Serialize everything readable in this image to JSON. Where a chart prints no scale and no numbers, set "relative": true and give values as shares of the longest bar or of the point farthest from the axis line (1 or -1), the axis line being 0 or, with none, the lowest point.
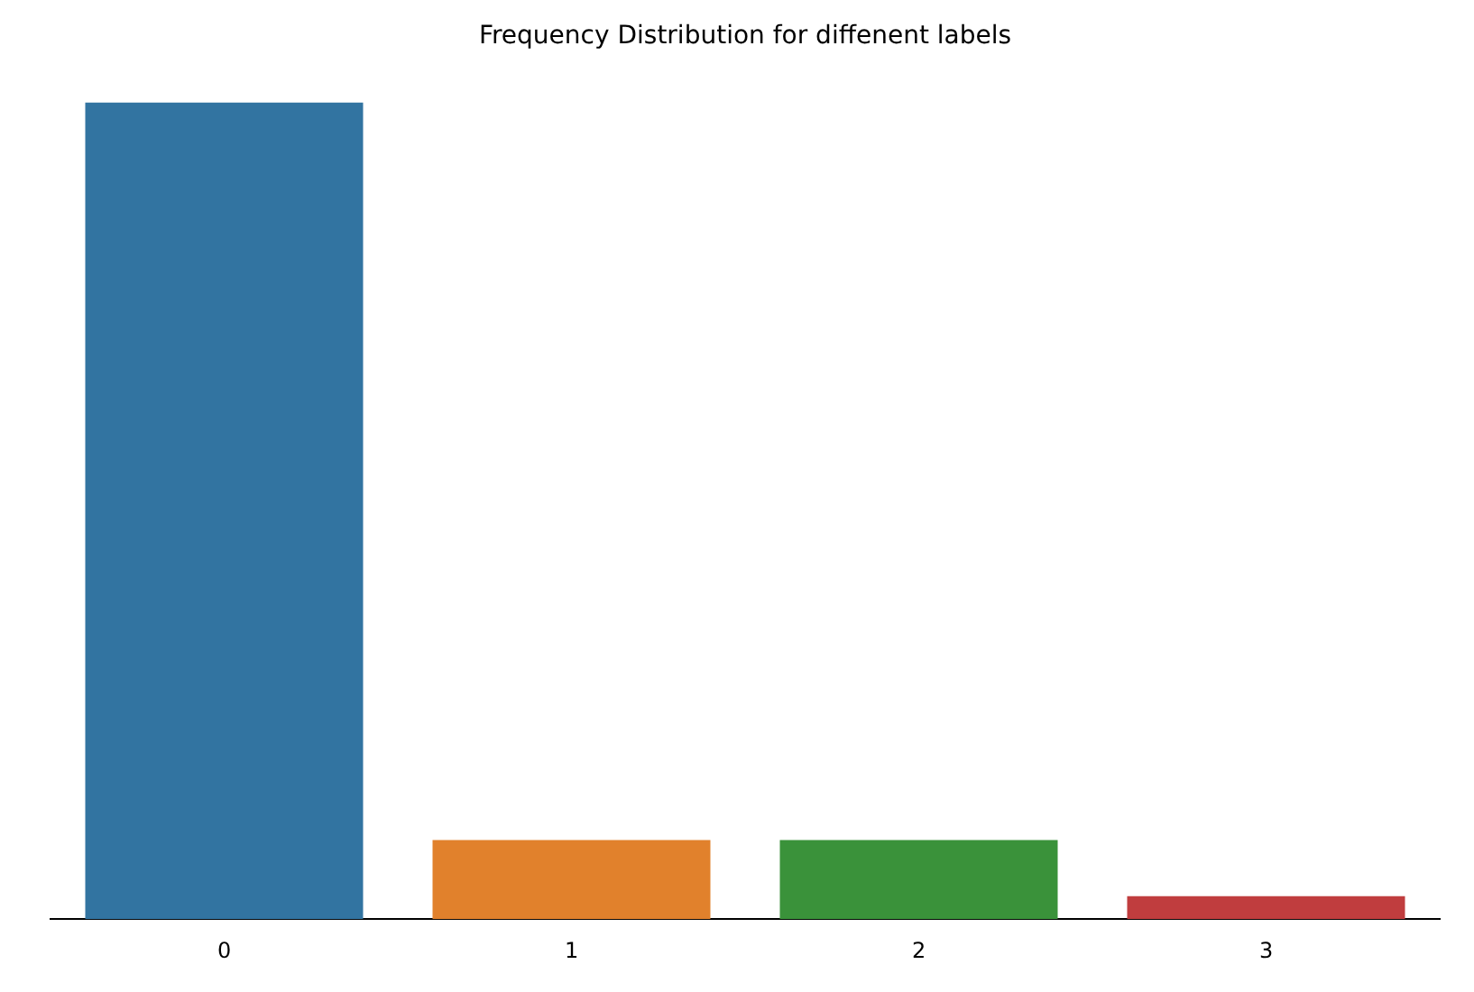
{
  "chart_data": {
    "type": "bar",
    "title": "Frequency Distribution for diffenent labels",
    "relative": true,
    "categories": [
      "0",
      "1",
      "2",
      "3"
    ],
    "values": [
      1,
      0.097,
      0.097,
      0.028
    ],
    "colors": [
      "#3274a1",
      "#e1812c",
      "#3a923a",
      "#c03d3e"
    ],
    "grid": false,
    "legend": false
  }
}
